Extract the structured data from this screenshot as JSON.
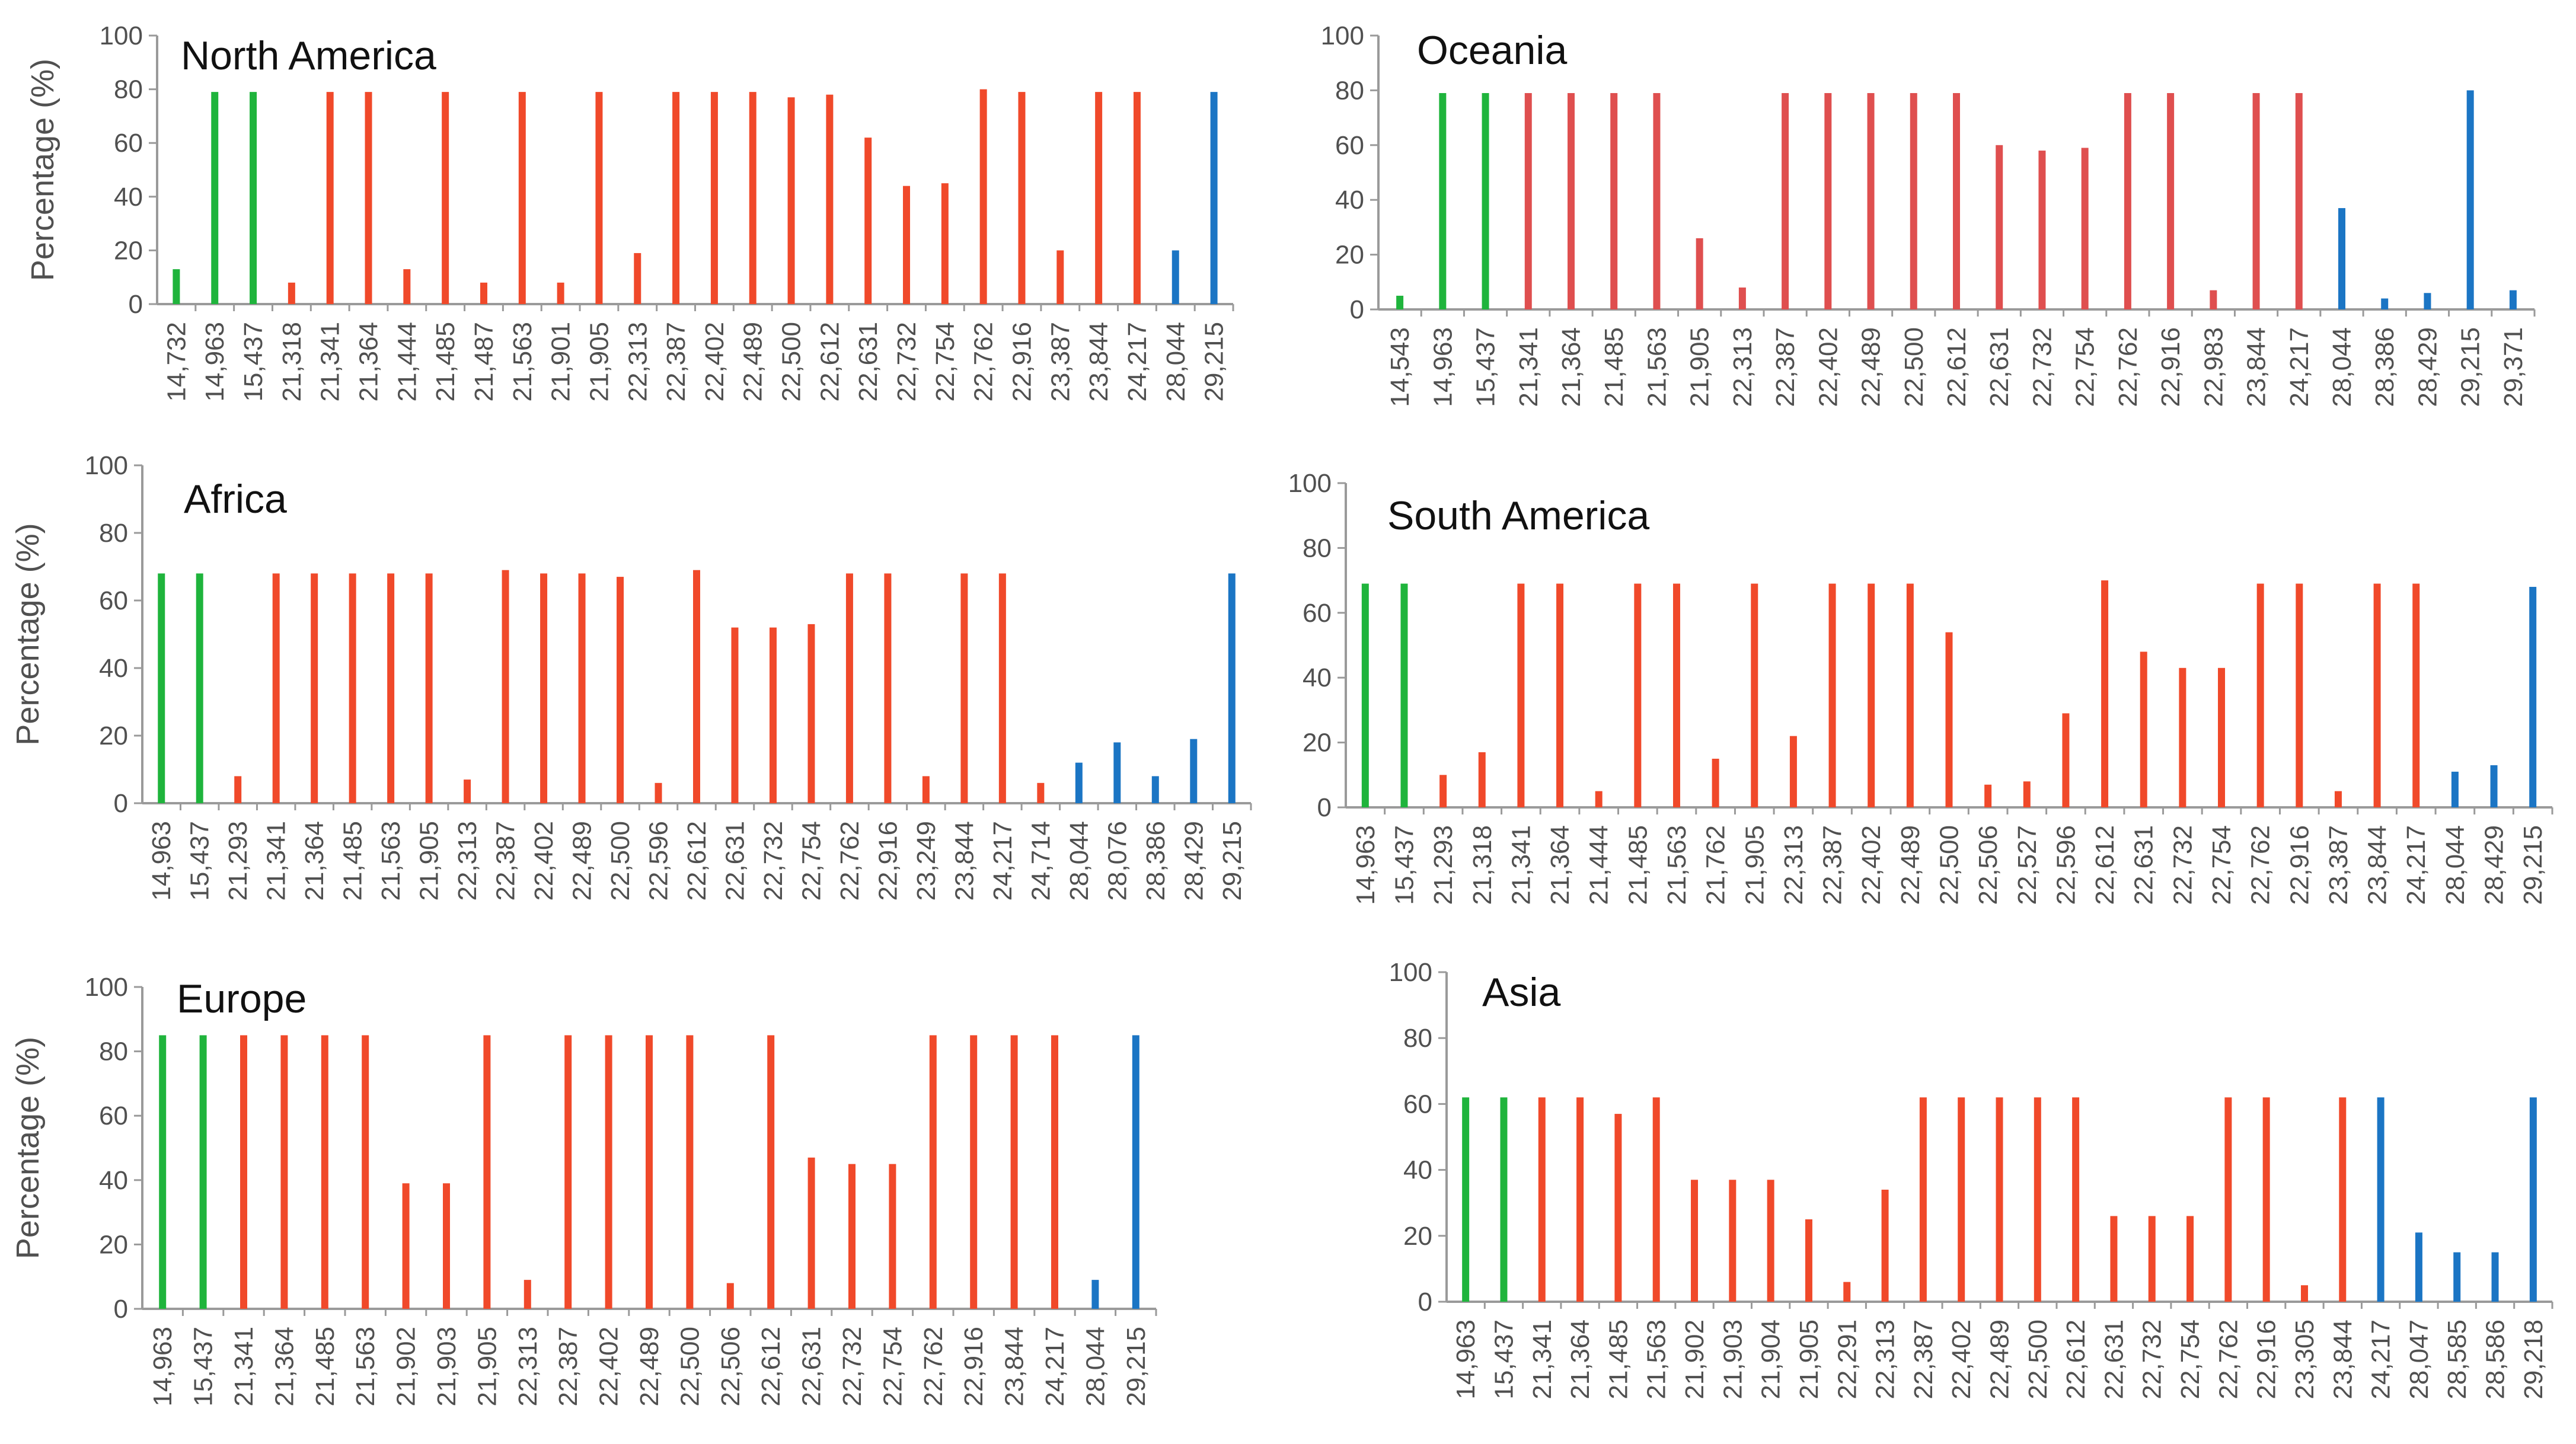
{
  "colors": {
    "green": "#1FB43C",
    "red": "#F0492A",
    "blue": "#1B75C4",
    "oceania_red": "#DF4F4F",
    "axis": "#9A9A9A",
    "text": "#505050"
  },
  "chart_data": [
    {
      "type": "bar",
      "title": "North America",
      "ylabel": "Percentage (%)",
      "ylim": [
        0,
        100
      ],
      "yticks": [
        "0",
        "20",
        "40",
        "60",
        "80",
        "100"
      ],
      "categories": [
        "14,732",
        "14,963",
        "15,437",
        "21,318",
        "21,341",
        "21,364",
        "21,444",
        "21,485",
        "21,487",
        "21,563",
        "21,901",
        "21,905",
        "22,313",
        "22,387",
        "22,402",
        "22,489",
        "22,500",
        "22,612",
        "22,631",
        "22,732",
        "22,754",
        "22,762",
        "22,916",
        "23,387",
        "23,844",
        "24,217",
        "28,044",
        "29,215"
      ],
      "values": [
        13,
        79,
        79,
        8,
        79,
        79,
        13,
        79,
        8,
        79,
        8,
        79,
        19,
        79,
        79,
        79,
        77,
        78,
        62,
        44,
        45,
        80,
        79,
        20,
        79,
        79,
        20,
        79
      ],
      "colors": [
        "green",
        "green",
        "green",
        "red",
        "red",
        "red",
        "red",
        "red",
        "red",
        "red",
        "red",
        "red",
        "red",
        "red",
        "red",
        "red",
        "red",
        "red",
        "red",
        "red",
        "red",
        "red",
        "red",
        "red",
        "red",
        "red",
        "blue",
        "blue"
      ]
    },
    {
      "type": "bar",
      "title": "Oceania",
      "ylabel": "",
      "ylim": [
        0,
        100
      ],
      "yticks": [
        "0",
        "20",
        "40",
        "60",
        "80",
        "100"
      ],
      "categories": [
        "14,543",
        "14,963",
        "15,437",
        "21,341",
        "21,364",
        "21,485",
        "21,563",
        "21,905",
        "22,313",
        "22,387",
        "22,402",
        "22,489",
        "22,500",
        "22,612",
        "22,631",
        "22,732",
        "22,754",
        "22,762",
        "22,916",
        "22,983",
        "23,844",
        "24,217",
        "28,044",
        "28,386",
        "28,429",
        "29,215",
        "29,371"
      ],
      "values": [
        5,
        79,
        79,
        79,
        79,
        79,
        79,
        26,
        8,
        79,
        79,
        79,
        79,
        79,
        60,
        58,
        59,
        79,
        79,
        7,
        79,
        79,
        37,
        4,
        6,
        80,
        7
      ],
      "colors": [
        "green",
        "green",
        "green",
        "oceania_red",
        "oceania_red",
        "oceania_red",
        "oceania_red",
        "oceania_red",
        "oceania_red",
        "oceania_red",
        "oceania_red",
        "oceania_red",
        "oceania_red",
        "oceania_red",
        "oceania_red",
        "oceania_red",
        "oceania_red",
        "oceania_red",
        "oceania_red",
        "oceania_red",
        "oceania_red",
        "oceania_red",
        "blue",
        "blue",
        "blue",
        "blue",
        "blue"
      ]
    },
    {
      "type": "bar",
      "title": "Africa",
      "ylabel": "Percentage (%)",
      "ylim": [
        0,
        100
      ],
      "yticks": [
        "0",
        "20",
        "40",
        "60",
        "80",
        "100"
      ],
      "categories": [
        "14,963",
        "15,437",
        "21,293",
        "21,341",
        "21,364",
        "21,485",
        "21,563",
        "21,905",
        "22,313",
        "22,387",
        "22,402",
        "22,489",
        "22,500",
        "22,596",
        "22,612",
        "22,631",
        "22,732",
        "22,754",
        "22,762",
        "22,916",
        "23,249",
        "23,844",
        "24,217",
        "24,714",
        "28,044",
        "28,076",
        "28,386",
        "28,429",
        "29,215"
      ],
      "values": [
        68,
        68,
        8,
        68,
        68,
        68,
        68,
        68,
        7,
        69,
        68,
        68,
        67,
        6,
        69,
        52,
        52,
        53,
        68,
        68,
        8,
        68,
        68,
        6,
        12,
        18,
        8,
        19,
        68
      ],
      "colors": [
        "green",
        "green",
        "red",
        "red",
        "red",
        "red",
        "red",
        "red",
        "red",
        "red",
        "red",
        "red",
        "red",
        "red",
        "red",
        "red",
        "red",
        "red",
        "red",
        "red",
        "red",
        "red",
        "red",
        "red",
        "blue",
        "blue",
        "blue",
        "blue",
        "blue"
      ]
    },
    {
      "type": "bar",
      "title": "South America",
      "ylabel": "",
      "ylim": [
        0,
        100
      ],
      "yticks": [
        "0",
        "20",
        "40",
        "60",
        "80",
        "100"
      ],
      "categories": [
        "14,963",
        "15,437",
        "21,293",
        "21,318",
        "21,341",
        "21,364",
        "21,444",
        "21,485",
        "21,563",
        "21,762",
        "21,905",
        "22,313",
        "22,387",
        "22,402",
        "22,489",
        "22,500",
        "22,506",
        "22,527",
        "22,596",
        "22,612",
        "22,631",
        "22,732",
        "22,754",
        "22,762",
        "22,916",
        "23,387",
        "23,844",
        "24,217",
        "28,044",
        "28,429",
        "29,215"
      ],
      "values": [
        69,
        69,
        10,
        17,
        69,
        69,
        5,
        69,
        69,
        15,
        69,
        22,
        69,
        69,
        69,
        54,
        7,
        8,
        29,
        70,
        48,
        43,
        43,
        69,
        69,
        5,
        69,
        69,
        11,
        13,
        68
      ],
      "colors": [
        "green",
        "green",
        "red",
        "red",
        "red",
        "red",
        "red",
        "red",
        "red",
        "red",
        "red",
        "red",
        "red",
        "red",
        "red",
        "red",
        "red",
        "red",
        "red",
        "red",
        "red",
        "red",
        "red",
        "red",
        "red",
        "red",
        "red",
        "red",
        "blue",
        "blue",
        "blue"
      ]
    },
    {
      "type": "bar",
      "title": "Europe",
      "ylabel": "Percentage (%)",
      "ylim": [
        0,
        100
      ],
      "yticks": [
        "0",
        "20",
        "40",
        "60",
        "80",
        "100"
      ],
      "categories": [
        "14,963",
        "15,437",
        "21,341",
        "21,364",
        "21,485",
        "21,563",
        "21,902",
        "21,903",
        "21,905",
        "22,313",
        "22,387",
        "22,402",
        "22,489",
        "22,500",
        "22,506",
        "22,612",
        "22,631",
        "22,732",
        "22,754",
        "22,762",
        "22,916",
        "23,844",
        "24,217",
        "28,044",
        "29,215"
      ],
      "values": [
        85,
        85,
        85,
        85,
        85,
        85,
        39,
        39,
        85,
        9,
        85,
        85,
        85,
        85,
        8,
        85,
        47,
        45,
        45,
        85,
        85,
        85,
        85,
        9,
        85
      ],
      "colors": [
        "green",
        "green",
        "red",
        "red",
        "red",
        "red",
        "red",
        "red",
        "red",
        "red",
        "red",
        "red",
        "red",
        "red",
        "red",
        "red",
        "red",
        "red",
        "red",
        "red",
        "red",
        "red",
        "red",
        "blue",
        "blue"
      ]
    },
    {
      "type": "bar",
      "title": "Asia",
      "ylabel": "",
      "ylim": [
        0,
        100
      ],
      "yticks": [
        "0",
        "20",
        "40",
        "60",
        "80",
        "100"
      ],
      "categories": [
        "14,963",
        "15,437",
        "21,341",
        "21,364",
        "21,485",
        "21,563",
        "21,902",
        "21,903",
        "21,904",
        "21,905",
        "22,291",
        "22,313",
        "22,387",
        "22,402",
        "22,489",
        "22,500",
        "22,612",
        "22,631",
        "22,732",
        "22,754",
        "22,762",
        "22,916",
        "23,305",
        "23,844",
        "24,217",
        "28,047",
        "28,585",
        "28,586",
        "29,218"
      ],
      "values": [
        62,
        62,
        62,
        62,
        57,
        62,
        37,
        37,
        37,
        25,
        6,
        34,
        62,
        62,
        62,
        62,
        62,
        26,
        26,
        26,
        62,
        62,
        5,
        62,
        62,
        21,
        15,
        15,
        62
      ],
      "colors": [
        "green",
        "green",
        "red",
        "red",
        "red",
        "red",
        "red",
        "red",
        "red",
        "red",
        "red",
        "red",
        "red",
        "red",
        "red",
        "red",
        "red",
        "red",
        "red",
        "red",
        "red",
        "red",
        "red",
        "red",
        "blue",
        "blue",
        "blue",
        "blue",
        "blue"
      ]
    }
  ]
}
